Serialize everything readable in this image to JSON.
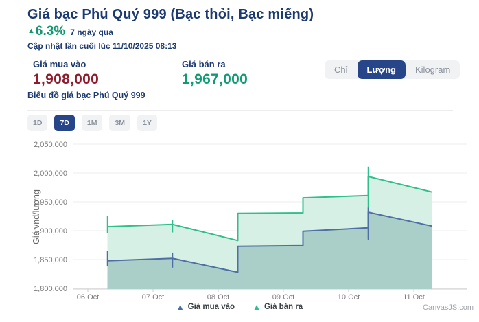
{
  "header": {
    "title": "Giá bạc Phú Quý 999 (Bạc thỏi, Bạc miếng)",
    "change_arrow": "▲",
    "change_percent": "6.3%",
    "change_period": "7 ngày qua",
    "updated": "Cập nhật lần cuối lúc 11/10/2025 08:13"
  },
  "prices": {
    "buy_label": "Giá mua vào",
    "buy_value": "1,908,000",
    "sell_label": "Giá bán ra",
    "sell_value": "1,967,000"
  },
  "unit_toggle": {
    "options": [
      "Chỉ",
      "Lượng",
      "Kilogram"
    ],
    "active": "Lượng"
  },
  "chart_section_title": "Biểu đồ giá bạc Phú Quý 999",
  "range_buttons": {
    "options": [
      "1D",
      "7D",
      "1M",
      "3M",
      "1Y"
    ],
    "active": "7D"
  },
  "watermark": "CanvasJS.com",
  "colors": {
    "navy_text": "#1d3a70",
    "green_accent": "#12986f",
    "maroon_price": "#8e1c2c",
    "active_button": "#27468a",
    "grid": "#ececec",
    "axis": "#cfcfcf",
    "axis_text": "#7b7b7b"
  },
  "chart_data": {
    "type": "area",
    "ylabel": "Giá vnd/lượng",
    "ylim": [
      1800000,
      2050000
    ],
    "yticks": [
      {
        "value": 2050000,
        "label": "2,050,000"
      },
      {
        "value": 2000000,
        "label": "2,000,000"
      },
      {
        "value": 1950000,
        "label": "1,950,000"
      },
      {
        "value": 1900000,
        "label": "1,900,000"
      },
      {
        "value": 1850000,
        "label": "1,850,000"
      },
      {
        "value": 1800000,
        "label": "1,800,000"
      }
    ],
    "xticks": [
      {
        "day": 6,
        "label": "06 Oct"
      },
      {
        "day": 7,
        "label": "07 Oct"
      },
      {
        "day": 8,
        "label": "08 Oct"
      },
      {
        "day": 9,
        "label": "09 Oct"
      },
      {
        "day": 10,
        "label": "10 Oct"
      },
      {
        "day": 11,
        "label": "11 Oct"
      }
    ],
    "legend_position": "bottom-center",
    "grid": true,
    "series": [
      {
        "name": "Giá mua vào",
        "color": "#4e6fa3",
        "fill": "#a9cfc8",
        "points": [
          [
            6.3,
            1848000
          ],
          [
            7.3,
            1852000
          ],
          [
            8.3,
            1828000
          ],
          [
            8.3,
            1873000
          ],
          [
            9.3,
            1874000
          ],
          [
            9.3,
            1899000
          ],
          [
            10.3,
            1905000
          ],
          [
            10.3,
            1932000
          ],
          [
            11.28,
            1908000
          ]
        ],
        "whiskers": [
          [
            6.3,
            1838000,
            1865000
          ],
          [
            7.3,
            1836000,
            1862000
          ],
          [
            10.3,
            1884000,
            1940000
          ]
        ]
      },
      {
        "name": "Giá bán ra",
        "color": "#2fbe8c",
        "fill": "#d7f0e5",
        "points": [
          [
            6.3,
            1907000
          ],
          [
            7.3,
            1911000
          ],
          [
            8.3,
            1883000
          ],
          [
            8.3,
            1930000
          ],
          [
            9.3,
            1931000
          ],
          [
            9.3,
            1957000
          ],
          [
            10.3,
            1961000
          ],
          [
            10.3,
            1994000
          ],
          [
            11.28,
            1967000
          ]
        ],
        "whiskers": [
          [
            6.3,
            1896000,
            1925000
          ],
          [
            7.3,
            1897000,
            1918000
          ],
          [
            10.3,
            1886000,
            2011000
          ]
        ]
      }
    ]
  }
}
